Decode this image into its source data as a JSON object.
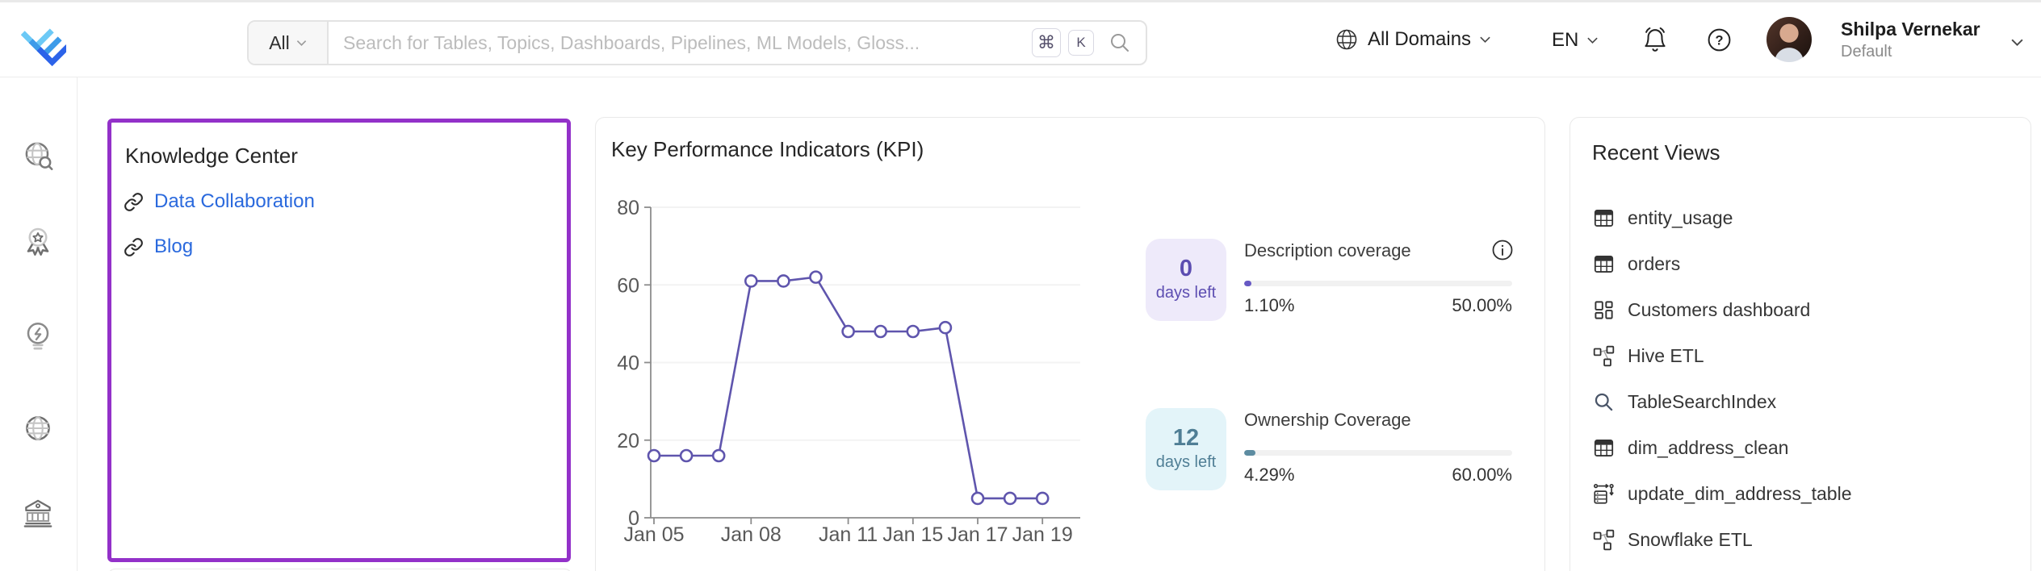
{
  "header": {
    "search": {
      "category": "All",
      "placeholder": "Search for Tables, Topics, Dashboards, Pipelines, ML Models, Gloss...",
      "shortcut_cmd": "⌘",
      "shortcut_key": "K"
    },
    "domain_selector": "All Domains",
    "language": "EN",
    "user": {
      "name": "Shilpa Vernekar",
      "team": "Default"
    }
  },
  "sidebar": {
    "items": [
      {
        "icon": "explore-icon"
      },
      {
        "icon": "data-quality-icon"
      },
      {
        "icon": "insights-icon"
      },
      {
        "icon": "domains-icon"
      },
      {
        "icon": "govern-icon"
      }
    ]
  },
  "knowledge_center": {
    "title": "Knowledge Center",
    "links": [
      {
        "label": "Data Collaboration"
      },
      {
        "label": "Blog"
      }
    ]
  },
  "kpi": {
    "title": "Key Performance Indicators (KPI)",
    "chart_data": {
      "type": "line",
      "title": "Key Performance Indicators (KPI)",
      "x_tick_labels": [
        "Jan 05",
        "Jan 08",
        "Jan 11",
        "Jan 15",
        "Jan 17",
        "Jan 19"
      ],
      "x_tick_indices": [
        0,
        3,
        6,
        8,
        10,
        12
      ],
      "values": [
        16,
        16,
        16,
        61,
        61,
        62,
        48,
        48,
        48,
        49,
        5,
        5,
        5
      ],
      "y_ticks": [
        0,
        20,
        40,
        60,
        80
      ],
      "ylim": [
        0,
        80
      ],
      "grid": "horizontal",
      "legend": "none",
      "line_color": "#5f55ad",
      "marker": "circle-open"
    },
    "stats": [
      {
        "days_left": "0",
        "days_left_label": "days left",
        "title": "Description coverage",
        "current": "1.10%",
        "target": "50.00%",
        "progress_pct": 1.1,
        "accent": "#6759c4",
        "badge_bg": "#eeeafa",
        "badge_text": "#5c4db1"
      },
      {
        "days_left": "12",
        "days_left_label": "days left",
        "title": "Ownership Coverage",
        "current": "4.29%",
        "target": "60.00%",
        "progress_pct": 4.29,
        "accent": "#5d8ca1",
        "badge_bg": "#e3f4f9",
        "badge_text": "#4f7e95"
      }
    ]
  },
  "recent_views": {
    "title": "Recent Views",
    "items": [
      {
        "label": "entity_usage",
        "icon": "table"
      },
      {
        "label": "orders",
        "icon": "table"
      },
      {
        "label": "Customers dashboard",
        "icon": "dashboard"
      },
      {
        "label": "Hive ETL",
        "icon": "pipeline"
      },
      {
        "label": "TableSearchIndex",
        "icon": "search"
      },
      {
        "label": "dim_address_clean",
        "icon": "table"
      },
      {
        "label": "update_dim_address_table",
        "icon": "stored-procedure"
      },
      {
        "label": "Snowflake ETL",
        "icon": "pipeline"
      }
    ]
  },
  "colors": {
    "brand_blue_light": "#6cc9f6",
    "brand_blue_mid": "#3d9be9",
    "brand_blue_dark": "#2c63e9",
    "knowledge_center_border": "#9331c9",
    "link_blue": "#2a69dd",
    "chart_line": "#5f55ad",
    "description_accent": "#6759c4",
    "ownership_accent": "#5d8ca1",
    "card_border": "#e9e9e9"
  }
}
